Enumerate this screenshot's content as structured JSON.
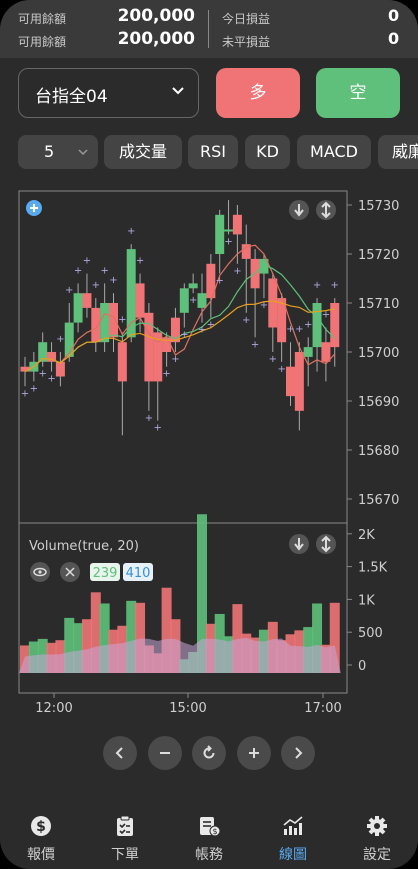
{
  "account": {
    "available_label_1": "可用餘額",
    "available_value_1": "200,000",
    "available_label_2": "可用餘額",
    "available_value_2": "200,000",
    "today_pl_label": "今日損益",
    "today_pl_value": "0",
    "unrealized_pl_label": "未平損益",
    "unrealized_pl_value": "0"
  },
  "order": {
    "symbol": "台指全04",
    "long_label": "多",
    "short_label": "空"
  },
  "indicators": {
    "interval": "5",
    "items": [
      "成交量",
      "RSI",
      "KD",
      "MACD",
      "威廉"
    ]
  },
  "chart_data": {
    "type": "candlestick",
    "price_ticks": [
      "15730",
      "15720",
      "15710",
      "15700",
      "15690",
      "15680",
      "15670"
    ],
    "volume_ticks": [
      "2K",
      "1.5K",
      "1K",
      "500",
      "0"
    ],
    "time_ticks": [
      "12:00",
      "15:00",
      "17:00"
    ],
    "volume_indicator": {
      "label": "Volume(true, 20)",
      "buy_value": "239",
      "sell_value": "410"
    },
    "colors": {
      "up": "#5ec07a",
      "down": "#f07476",
      "ma1": "#e07060",
      "ma2": "#5ec07a",
      "ma3": "#e8a020"
    },
    "candles": [
      {
        "o": 15697,
        "c": 15696,
        "h": 15699,
        "l": 15693,
        "v": 420
      },
      {
        "o": 15696,
        "c": 15698,
        "h": 15700,
        "l": 15694,
        "v": 480
      },
      {
        "o": 15698,
        "c": 15702,
        "h": 15704,
        "l": 15697,
        "v": 520
      },
      {
        "o": 15700,
        "c": 15698,
        "h": 15702,
        "l": 15696,
        "v": 460
      },
      {
        "o": 15698,
        "c": 15695,
        "h": 15700,
        "l": 15693,
        "v": 500
      },
      {
        "o": 15699,
        "c": 15706,
        "h": 15710,
        "l": 15698,
        "v": 840
      },
      {
        "o": 15706,
        "c": 15712,
        "h": 15714,
        "l": 15704,
        "v": 760
      },
      {
        "o": 15712,
        "c": 15709,
        "h": 15716,
        "l": 15707,
        "v": 820
      },
      {
        "o": 15709,
        "c": 15702,
        "h": 15711,
        "l": 15700,
        "v": 1230
      },
      {
        "o": 15702,
        "c": 15710,
        "h": 15714,
        "l": 15700,
        "v": 1060
      },
      {
        "o": 15710,
        "c": 15703,
        "h": 15712,
        "l": 15700,
        "v": 660
      },
      {
        "o": 15702,
        "c": 15694,
        "h": 15704,
        "l": 15683,
        "v": 720
      },
      {
        "o": 15703,
        "c": 15721,
        "h": 15722,
        "l": 15702,
        "v": 1100
      },
      {
        "o": 15714,
        "c": 15707,
        "h": 15716,
        "l": 15704,
        "v": 1070
      },
      {
        "o": 15708,
        "c": 15694,
        "h": 15710,
        "l": 15688,
        "v": 420
      },
      {
        "o": 15704,
        "c": 15694,
        "h": 15705,
        "l": 15686,
        "v": 300
      },
      {
        "o": 15703,
        "c": 15700,
        "h": 15704,
        "l": 15697,
        "v": 1300
      },
      {
        "o": 15707,
        "c": 15702,
        "h": 15709,
        "l": 15700,
        "v": 820
      },
      {
        "o": 15708,
        "c": 15713,
        "h": 15714,
        "l": 15705,
        "v": 210
      },
      {
        "o": 15713,
        "c": 15714,
        "h": 15716,
        "l": 15712,
        "v": 320
      },
      {
        "o": 15709,
        "c": 15712,
        "h": 15716,
        "l": 15706,
        "v": 2420
      },
      {
        "o": 15718,
        "c": 15711,
        "h": 15720,
        "l": 15707,
        "v": 750
      },
      {
        "o": 15720,
        "c": 15728,
        "h": 15729,
        "l": 15716,
        "v": 900
      },
      {
        "o": 15725,
        "c": 15725,
        "h": 15731,
        "l": 15724,
        "v": 560
      },
      {
        "o": 15728,
        "c": 15724,
        "h": 15730,
        "l": 15718,
        "v": 1050
      },
      {
        "o": 15722,
        "c": 15719,
        "h": 15726,
        "l": 15708,
        "v": 600
      },
      {
        "o": 15719,
        "c": 15713,
        "h": 15721,
        "l": 15703,
        "v": 540
      },
      {
        "o": 15716,
        "c": 15719,
        "h": 15720,
        "l": 15711,
        "v": 660
      },
      {
        "o": 15715,
        "c": 15705,
        "h": 15716,
        "l": 15700,
        "v": 780
      },
      {
        "o": 15711,
        "c": 15702,
        "h": 15712,
        "l": 15698,
        "v": 500
      },
      {
        "o": 15697,
        "c": 15691,
        "h": 15702,
        "l": 15689,
        "v": 590
      },
      {
        "o": 15700,
        "c": 15688,
        "h": 15702,
        "l": 15684,
        "v": 650
      },
      {
        "o": 15699,
        "c": 15701,
        "h": 15703,
        "l": 15693,
        "v": 700
      },
      {
        "o": 15701,
        "c": 15710,
        "h": 15711,
        "l": 15696,
        "v": 1060
      },
      {
        "o": 15702,
        "c": 15698,
        "h": 15705,
        "l": 15694,
        "v": 430
      },
      {
        "o": 15710,
        "c": 15701,
        "h": 15711,
        "l": 15697,
        "v": 1070
      }
    ]
  },
  "controls": [
    "previous",
    "zoom-out",
    "reset",
    "zoom-in",
    "next"
  ],
  "tabs": [
    {
      "label": "報價",
      "icon": "dollar-icon",
      "active": false
    },
    {
      "label": "下單",
      "icon": "clipboard-icon",
      "active": false
    },
    {
      "label": "帳務",
      "icon": "ledger-icon",
      "active": false
    },
    {
      "label": "線圖",
      "icon": "chart-icon",
      "active": true
    },
    {
      "label": "設定",
      "icon": "gear-icon",
      "active": false
    }
  ]
}
